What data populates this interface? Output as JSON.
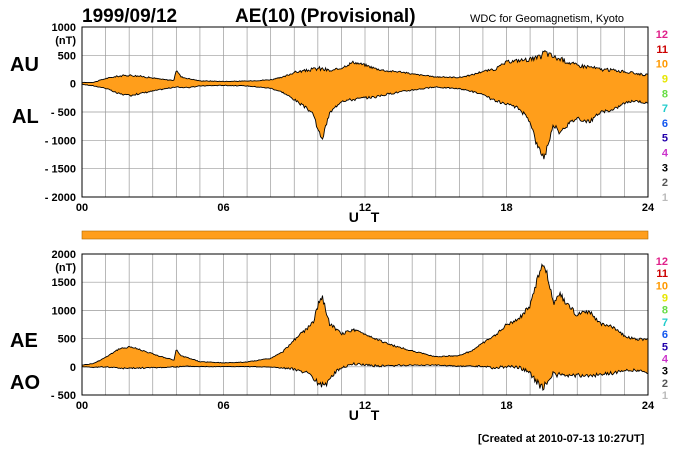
{
  "header": {
    "date": "1999/09/12",
    "title": "AE(10) (Provisional)",
    "organization": "WDC for Geomagnetism, Kyoto"
  },
  "footer": "[Created at 2010-07-13 10:27UT]",
  "station_count_labels": [
    "12",
    "11",
    "10",
    "9",
    "8",
    "7",
    "6",
    "5",
    "4",
    "3",
    "2",
    "1"
  ],
  "station_count_colors": [
    "#e0208a",
    "#cc0000",
    "#ff9900",
    "#e6e600",
    "#66dd44",
    "#22cccc",
    "#1155ee",
    "#2200aa",
    "#cc33cc",
    "#000000",
    "#555555",
    "#bbbbbb"
  ],
  "colors": {
    "fill": "#ff9e1b",
    "line": "#000000",
    "grid": "#9a9a9a"
  },
  "chart_data": [
    {
      "type": "area",
      "series_labels": [
        "AU",
        "AL"
      ],
      "unit": "(nT)",
      "xlabel": "U T",
      "xlim": [
        0,
        24
      ],
      "ylim": [
        -2000,
        1000
      ],
      "yticks": [
        1000,
        500,
        0,
        -500,
        -1000,
        -1500,
        -2000
      ],
      "ytick_labels": [
        "1000",
        "500",
        "0",
        "- 500",
        "- 1000",
        "- 1500",
        "- 2000"
      ],
      "xticks": [
        0,
        6,
        12,
        18,
        24
      ],
      "xtick_labels": [
        "00",
        "06",
        "12",
        "18",
        "24"
      ],
      "upper": {
        "x": [
          0,
          0.5,
          1,
          1.5,
          2,
          2.5,
          3,
          3.5,
          3.9,
          4.0,
          4.2,
          4.5,
          5,
          6,
          7,
          8,
          8.5,
          9,
          9.5,
          10,
          10.3,
          10.6,
          11,
          11.5,
          12,
          12.5,
          13,
          13.5,
          14,
          15,
          16,
          16.5,
          17,
          17.5,
          18,
          18.5,
          19,
          19.4,
          19.6,
          20,
          20.5,
          21,
          21.5,
          22,
          22.5,
          23,
          23.5,
          24
        ],
        "y": [
          20,
          25,
          90,
          130,
          150,
          130,
          100,
          70,
          60,
          250,
          120,
          90,
          50,
          40,
          45,
          70,
          110,
          200,
          230,
          270,
          250,
          220,
          280,
          380,
          330,
          260,
          220,
          210,
          170,
          120,
          110,
          150,
          220,
          250,
          380,
          410,
          430,
          450,
          560,
          470,
          400,
          320,
          300,
          250,
          240,
          210,
          180,
          150
        ]
      },
      "lower": {
        "x": [
          0,
          0.5,
          1,
          1.5,
          2,
          2.5,
          3,
          3.5,
          4,
          4.5,
          5,
          6,
          7,
          8,
          8.5,
          9,
          9.5,
          9.8,
          10,
          10.2,
          10.5,
          11,
          11.5,
          12,
          12.5,
          13,
          14,
          15,
          16,
          16.5,
          17,
          17.5,
          18,
          18.5,
          19,
          19.3,
          19.6,
          19.8,
          20,
          20.2,
          20.5,
          21,
          21.5,
          22,
          22.5,
          23,
          23.5,
          24
        ],
        "y": [
          -10,
          -40,
          -80,
          -170,
          -210,
          -170,
          -130,
          -90,
          -60,
          -70,
          -40,
          -30,
          -40,
          -80,
          -150,
          -280,
          -430,
          -520,
          -830,
          -960,
          -520,
          -300,
          -280,
          -250,
          -230,
          -180,
          -110,
          -60,
          -90,
          -130,
          -200,
          -300,
          -370,
          -430,
          -650,
          -1100,
          -1300,
          -1000,
          -720,
          -850,
          -750,
          -600,
          -680,
          -500,
          -470,
          -340,
          -300,
          -350
        ]
      }
    },
    {
      "type": "area",
      "series_labels": [
        "AE",
        "AO"
      ],
      "unit": "(nT)",
      "xlabel": "U T",
      "xlim": [
        0,
        24
      ],
      "ylim": [
        -500,
        2000
      ],
      "yticks": [
        2000,
        1500,
        1000,
        500,
        0,
        -500
      ],
      "ytick_labels": [
        "2000",
        "1500",
        "1000",
        "500",
        "0",
        "- 500"
      ],
      "xticks": [
        0,
        6,
        12,
        18,
        24
      ],
      "xtick_labels": [
        "00",
        "06",
        "12",
        "18",
        "24"
      ],
      "upper": {
        "x": [
          0,
          0.5,
          1,
          1.5,
          2,
          2.5,
          3,
          3.5,
          3.9,
          4.0,
          4.2,
          4.5,
          5,
          6,
          7,
          8,
          8.5,
          9,
          9.5,
          9.8,
          10,
          10.2,
          10.5,
          11,
          11.5,
          12,
          12.5,
          13,
          14,
          15,
          16,
          16.5,
          17,
          17.5,
          18,
          18.5,
          19,
          19.3,
          19.6,
          19.8,
          20,
          20.2,
          20.5,
          21,
          21.5,
          22,
          22.5,
          23,
          23.5,
          24
        ],
        "y": [
          30,
          60,
          170,
          300,
          360,
          300,
          230,
          160,
          120,
          310,
          190,
          160,
          90,
          70,
          85,
          150,
          260,
          480,
          660,
          790,
          1090,
          1210,
          770,
          580,
          660,
          580,
          490,
          400,
          280,
          180,
          200,
          280,
          420,
          550,
          750,
          840,
          1080,
          1550,
          1860,
          1470,
          1120,
          1320,
          1150,
          920,
          980,
          750,
          710,
          550,
          480,
          500
        ]
      },
      "lower": {
        "x": [
          0,
          0.5,
          1,
          1.5,
          2,
          2.5,
          3,
          3.5,
          4,
          4.5,
          5,
          6,
          7,
          8,
          8.5,
          9,
          9.5,
          10,
          10.3,
          10.6,
          11,
          11.5,
          12,
          12.5,
          13,
          14,
          15,
          16,
          16.5,
          17,
          17.5,
          18,
          18.5,
          19,
          19.5,
          20,
          20.5,
          21,
          21.5,
          22,
          22.5,
          23,
          23.5,
          24
        ],
        "y": [
          5,
          -10,
          0,
          -20,
          -30,
          -20,
          -15,
          -10,
          0,
          10,
          5,
          5,
          3,
          -5,
          -20,
          -40,
          -100,
          -280,
          -350,
          -150,
          -10,
          50,
          40,
          15,
          20,
          30,
          30,
          10,
          10,
          10,
          -25,
          5,
          -10,
          -110,
          -370,
          -120,
          -170,
          -150,
          -190,
          -125,
          -115,
          -65,
          -60,
          -100
        ]
      }
    }
  ]
}
